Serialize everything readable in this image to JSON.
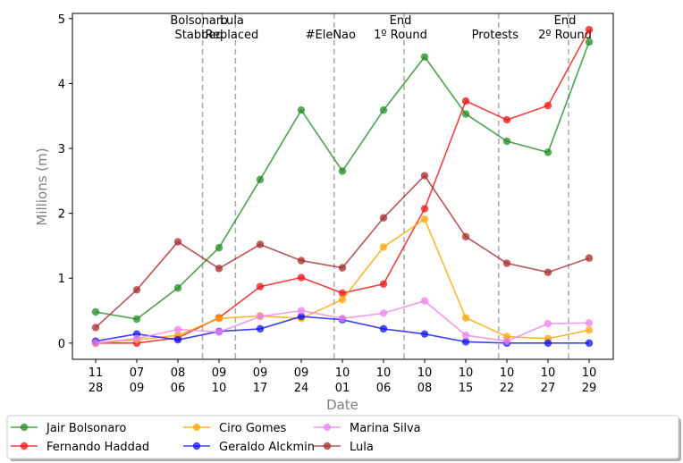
{
  "chart_data": {
    "type": "line",
    "xlabel": "Date",
    "ylabel": "Millions (m)",
    "ylim": [
      -0.25,
      5.08
    ],
    "yticks": [
      0,
      1,
      2,
      3,
      4,
      5
    ],
    "grid": false,
    "legend_placement": "bottom",
    "x_labels": [
      {
        "top": "11",
        "bottom": "28"
      },
      {
        "top": "07",
        "bottom": "09"
      },
      {
        "top": "08",
        "bottom": "06"
      },
      {
        "top": "09",
        "bottom": "10"
      },
      {
        "top": "09",
        "bottom": "17"
      },
      {
        "top": "09",
        "bottom": "24"
      },
      {
        "top": "10",
        "bottom": "01"
      },
      {
        "top": "10",
        "bottom": "06"
      },
      {
        "top": "10",
        "bottom": "08"
      },
      {
        "top": "10",
        "bottom": "15"
      },
      {
        "top": "10",
        "bottom": "22"
      },
      {
        "top": "10",
        "bottom": "27"
      },
      {
        "top": "10",
        "bottom": "29"
      }
    ],
    "series": [
      {
        "name": "Jair Bolsonaro",
        "color": "#228b22",
        "values": [
          0.48,
          0.37,
          0.85,
          1.47,
          2.52,
          3.59,
          2.65,
          3.59,
          4.41,
          3.53,
          3.11,
          2.94,
          4.64
        ]
      },
      {
        "name": "Fernando Haddad",
        "color": "#ee1111",
        "values": [
          0.0,
          0.0,
          0.08,
          0.39,
          0.87,
          1.01,
          0.77,
          0.91,
          2.07,
          3.73,
          3.44,
          3.66,
          4.83
        ]
      },
      {
        "name": "Ciro Gomes",
        "color": "#ffa500",
        "values": [
          0.0,
          0.05,
          0.12,
          0.38,
          0.42,
          0.38,
          0.67,
          1.48,
          1.91,
          0.39,
          0.1,
          0.07,
          0.2
        ]
      },
      {
        "name": "Geraldo Alckmin",
        "color": "#1010ee",
        "values": [
          0.03,
          0.14,
          0.05,
          0.18,
          0.22,
          0.41,
          0.36,
          0.22,
          0.14,
          0.02,
          0.0,
          0.0,
          0.0
        ]
      },
      {
        "name": "Marina Silva",
        "color": "#ee82ee",
        "values": [
          0.0,
          0.07,
          0.21,
          0.17,
          0.41,
          0.5,
          0.38,
          0.46,
          0.65,
          0.12,
          0.03,
          0.3,
          0.31
        ]
      },
      {
        "name": "Lula",
        "color": "#a52a2a",
        "values": [
          0.24,
          0.82,
          1.56,
          1.15,
          1.52,
          1.27,
          1.16,
          1.93,
          2.58,
          1.64,
          1.23,
          1.09,
          1.31
        ]
      }
    ],
    "events": [
      {
        "after_index": 2.6,
        "lines": [
          "Bolsonaro",
          "Stabbed"
        ]
      },
      {
        "after_index": 3.4,
        "lines": [
          " Lula",
          "Replaced"
        ]
      },
      {
        "after_index": 5.8,
        "lines": [
          "#EleNao"
        ]
      },
      {
        "after_index": 7.5,
        "lines": [
          "End",
          "1º Round"
        ]
      },
      {
        "after_index": 9.8,
        "lines": [
          "Protests"
        ]
      },
      {
        "after_index": 11.5,
        "lines": [
          "End",
          "2º Round"
        ]
      }
    ]
  }
}
